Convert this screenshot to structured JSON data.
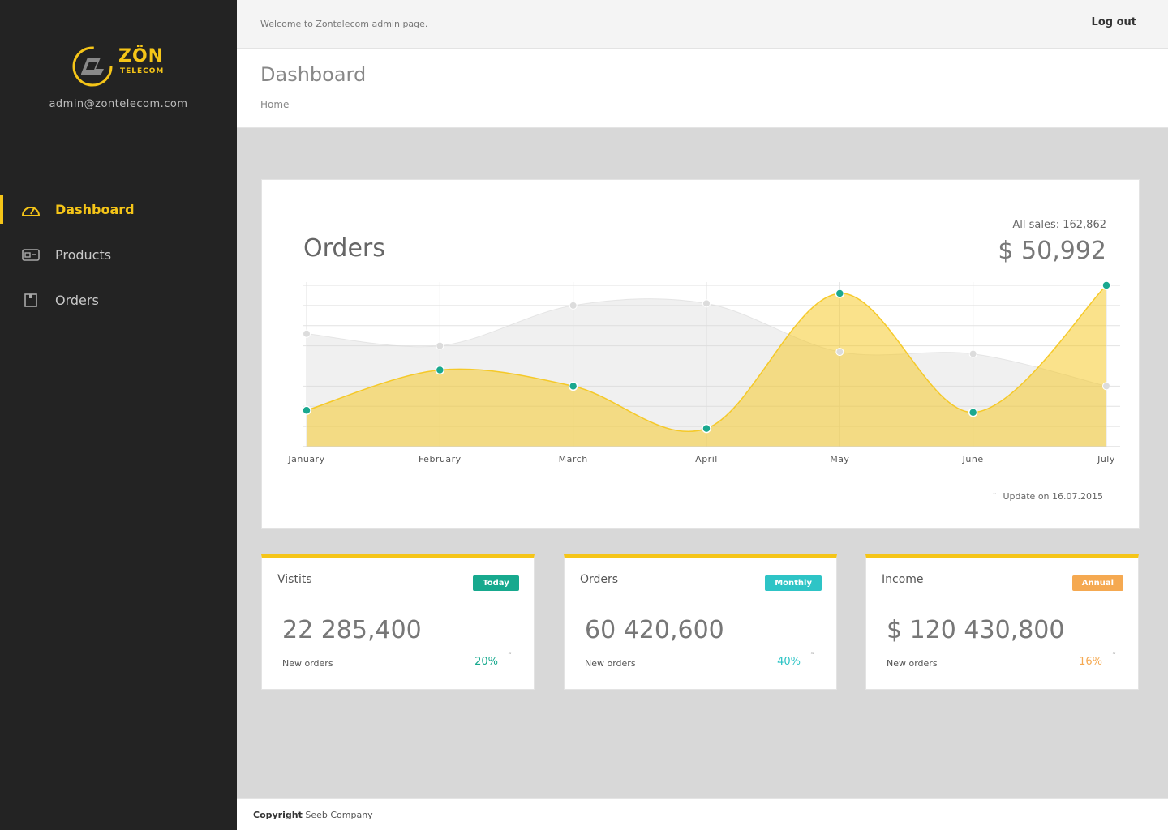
{
  "brand": {
    "name": "ZÖN",
    "sub": "TELECOM",
    "accent": "#f5c518"
  },
  "sidebar": {
    "email": "admin@zontelecom.com",
    "items": [
      {
        "label": "Dashboard",
        "icon": "dashboard-gauge-icon",
        "active": true
      },
      {
        "label": "Products",
        "icon": "router-icon",
        "active": false
      },
      {
        "label": "Orders",
        "icon": "box-icon",
        "active": false
      }
    ]
  },
  "topbar": {
    "welcome": "Welcome to Zontelecom admin page.",
    "logout": "Log out"
  },
  "header": {
    "title": "Dashboard",
    "breadcrumb": "Home"
  },
  "orders_card": {
    "title": "Orders",
    "all_sales": "All sales: 162,862",
    "total": "$ 50,992",
    "update_icon": "trend-icon",
    "update_note": "Update on 16.07.2015"
  },
  "chart_data": {
    "type": "area",
    "title": "Orders",
    "categories": [
      "January",
      "February",
      "March",
      "April",
      "May",
      "June",
      "July"
    ],
    "grid": true,
    "ylim": [
      0,
      8
    ],
    "series": [
      {
        "values": [
          5.6,
          5.0,
          7.0,
          7.1,
          4.7,
          4.6,
          3.0
        ],
        "color": "#d9d9d9"
      },
      {
        "values": [
          1.8,
          3.8,
          3.0,
          0.9,
          7.6,
          1.7,
          8.0
        ],
        "color": "#f5c518",
        "point_color": "#1aa88f"
      }
    ]
  },
  "stats": [
    {
      "title": "Vistits",
      "badge": "Today",
      "badge_color": "#17a98e",
      "value": "22 285,400",
      "sub": "New orders",
      "pct": "20%",
      "pct_color": "#17a98e"
    },
    {
      "title": "Orders",
      "badge": "Monthly",
      "badge_color": "#2ec4c6",
      "value": "60 420,600",
      "sub": "New orders",
      "pct": "40%",
      "pct_color": "#2ec4c6"
    },
    {
      "title": "Income",
      "badge": "Annual",
      "badge_color": "#f5a951",
      "value": "$ 120 430,800",
      "sub": "New orders",
      "pct": "16%",
      "pct_color": "#f5a951"
    }
  ],
  "footer": {
    "bold": "Copyright",
    "text": "Seeb Company"
  }
}
